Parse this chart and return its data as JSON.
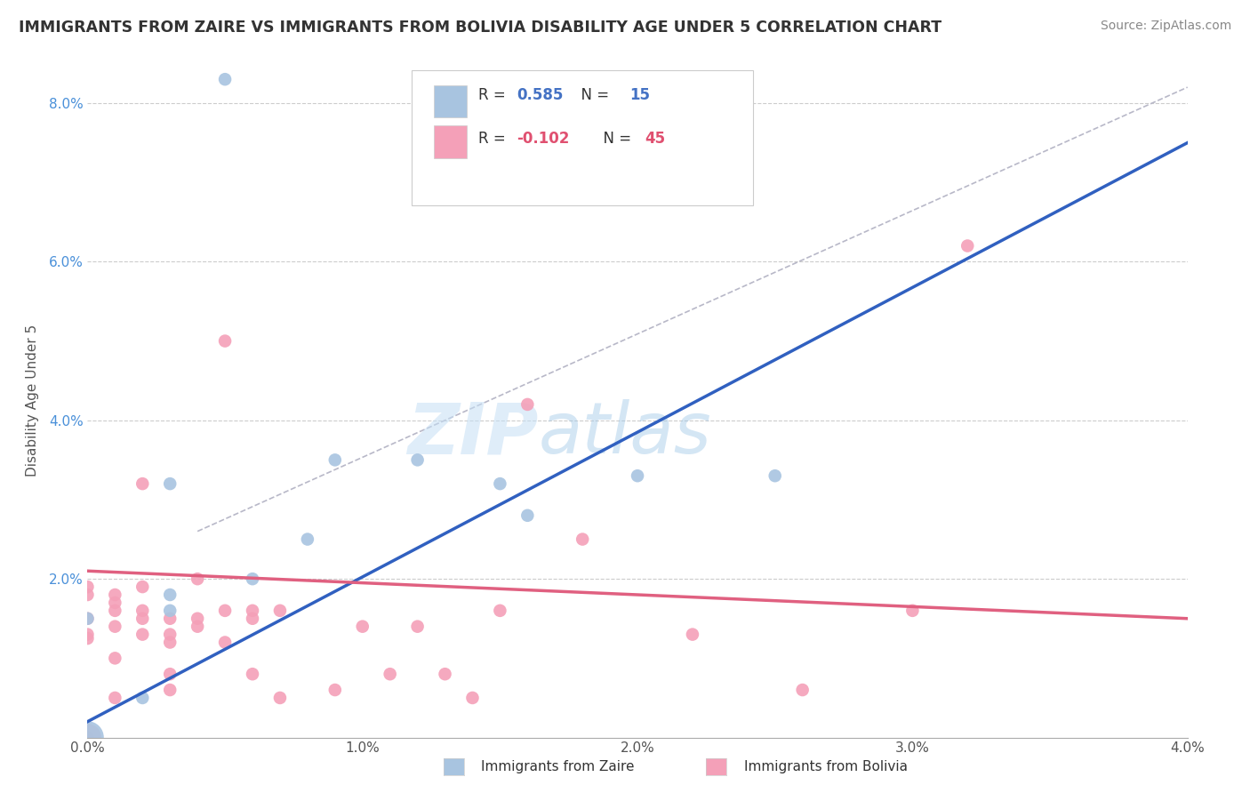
{
  "title": "IMMIGRANTS FROM ZAIRE VS IMMIGRANTS FROM BOLIVIA DISABILITY AGE UNDER 5 CORRELATION CHART",
  "source": "Source: ZipAtlas.com",
  "ylabel": "Disability Age Under 5",
  "xlim": [
    0.0,
    0.04
  ],
  "ylim": [
    0.0,
    0.085
  ],
  "xticks": [
    0.0,
    0.01,
    0.02,
    0.03,
    0.04
  ],
  "xtick_labels": [
    "0.0%",
    "1.0%",
    "2.0%",
    "3.0%",
    "4.0%"
  ],
  "yticks": [
    0.0,
    0.02,
    0.04,
    0.06,
    0.08
  ],
  "ytick_labels": [
    "",
    "2.0%",
    "4.0%",
    "6.0%",
    "8.0%"
  ],
  "zaire_R": 0.585,
  "zaire_N": 15,
  "bolivia_R": -0.102,
  "bolivia_N": 45,
  "zaire_color": "#a8c4e0",
  "bolivia_color": "#f4a0b8",
  "zaire_line_color": "#3060c0",
  "bolivia_line_color": "#e06080",
  "ref_line_color": "#b8b8c8",
  "zaire_scatter": [
    [
      0.0,
      0.0
    ],
    [
      0.0,
      0.015
    ],
    [
      0.002,
      0.005
    ],
    [
      0.003,
      0.016
    ],
    [
      0.003,
      0.018
    ],
    [
      0.003,
      0.032
    ],
    [
      0.005,
      0.083
    ],
    [
      0.006,
      0.02
    ],
    [
      0.008,
      0.025
    ],
    [
      0.009,
      0.035
    ],
    [
      0.012,
      0.035
    ],
    [
      0.015,
      0.032
    ],
    [
      0.016,
      0.028
    ],
    [
      0.02,
      0.033
    ],
    [
      0.025,
      0.033
    ]
  ],
  "bolivia_scatter": [
    [
      0.0,
      0.018
    ],
    [
      0.0,
      0.019
    ],
    [
      0.0,
      0.013
    ],
    [
      0.0,
      0.015
    ],
    [
      0.0,
      0.0125
    ],
    [
      0.001,
      0.017
    ],
    [
      0.001,
      0.018
    ],
    [
      0.001,
      0.016
    ],
    [
      0.001,
      0.014
    ],
    [
      0.001,
      0.01
    ],
    [
      0.001,
      0.005
    ],
    [
      0.002,
      0.019
    ],
    [
      0.002,
      0.016
    ],
    [
      0.002,
      0.015
    ],
    [
      0.002,
      0.013
    ],
    [
      0.002,
      0.032
    ],
    [
      0.003,
      0.015
    ],
    [
      0.003,
      0.013
    ],
    [
      0.003,
      0.012
    ],
    [
      0.003,
      0.008
    ],
    [
      0.003,
      0.006
    ],
    [
      0.004,
      0.02
    ],
    [
      0.004,
      0.015
    ],
    [
      0.004,
      0.014
    ],
    [
      0.005,
      0.05
    ],
    [
      0.005,
      0.016
    ],
    [
      0.005,
      0.012
    ],
    [
      0.006,
      0.016
    ],
    [
      0.006,
      0.015
    ],
    [
      0.006,
      0.008
    ],
    [
      0.007,
      0.016
    ],
    [
      0.007,
      0.005
    ],
    [
      0.009,
      0.006
    ],
    [
      0.01,
      0.014
    ],
    [
      0.011,
      0.008
    ],
    [
      0.012,
      0.014
    ],
    [
      0.013,
      0.008
    ],
    [
      0.014,
      0.005
    ],
    [
      0.015,
      0.016
    ],
    [
      0.016,
      0.042
    ],
    [
      0.018,
      0.025
    ],
    [
      0.022,
      0.013
    ],
    [
      0.026,
      0.006
    ],
    [
      0.03,
      0.016
    ],
    [
      0.032,
      0.062
    ]
  ],
  "watermark_zip": "ZIP",
  "watermark_atlas": "atlas",
  "zaire_line_x0": 0.0,
  "zaire_line_y0": 0.002,
  "zaire_line_x1": 0.04,
  "zaire_line_y1": 0.075,
  "bolivia_line_x0": 0.0,
  "bolivia_line_y0": 0.021,
  "bolivia_line_x1": 0.04,
  "bolivia_line_y1": 0.015,
  "ref_line_x0": 0.004,
  "ref_line_y0": 0.026,
  "ref_line_x1": 0.04,
  "ref_line_y1": 0.082
}
